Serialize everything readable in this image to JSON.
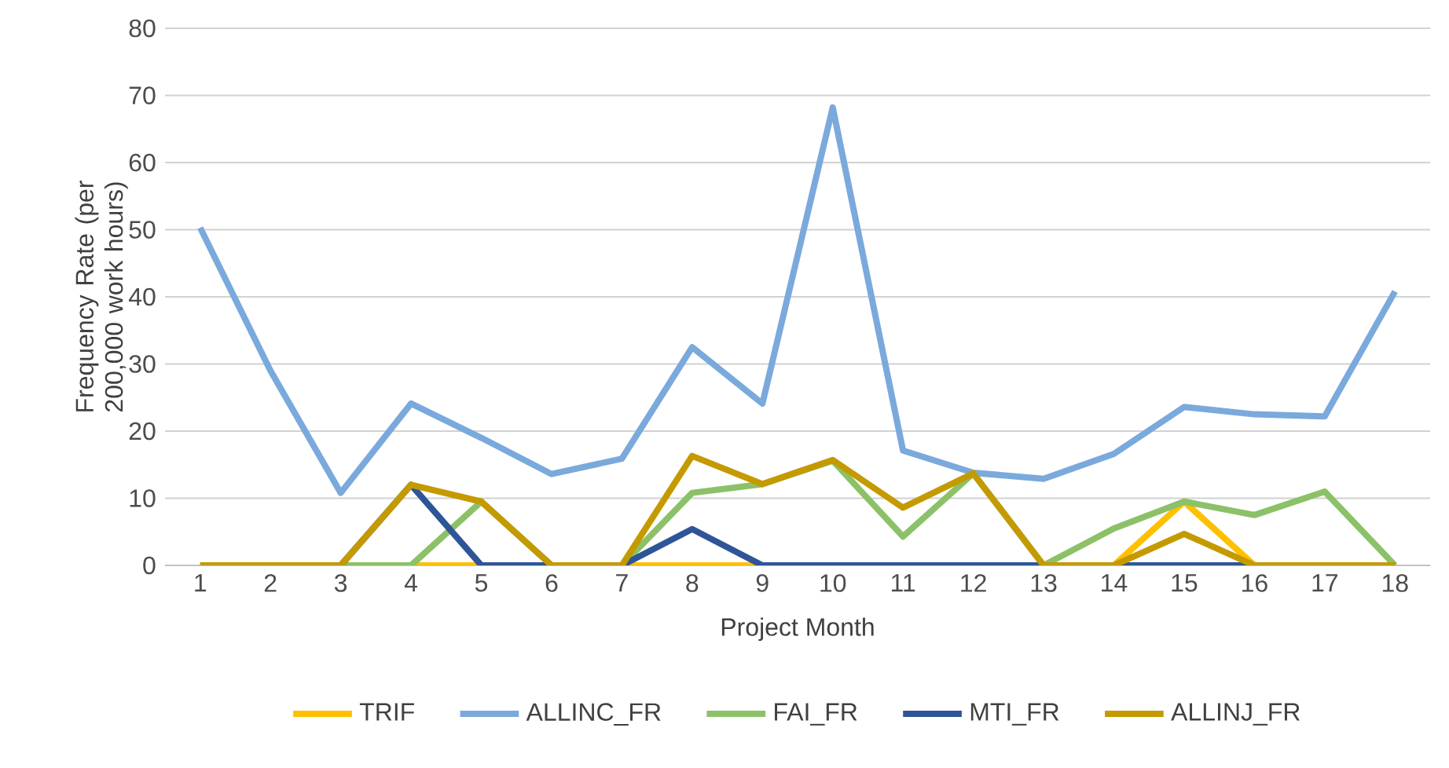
{
  "chart_data": {
    "type": "line",
    "xlabel": "Project Month",
    "ylabel": "Frequency Rate (per 200,000 work hours)",
    "categories": [
      "1",
      "2",
      "3",
      "4",
      "5",
      "6",
      "7",
      "8",
      "9",
      "10",
      "11",
      "12",
      "13",
      "14",
      "15",
      "16",
      "17",
      "18"
    ],
    "series": [
      {
        "name": "TRIF",
        "color": "#ffc000",
        "values": [
          null,
          null,
          null,
          0,
          0,
          0,
          0,
          0,
          0,
          null,
          null,
          null,
          null,
          0,
          9.5,
          0,
          null,
          null
        ]
      },
      {
        "name": "ALLINC_FR",
        "color": "#7aa9dc",
        "values": [
          50.3,
          29,
          10.8,
          24.1,
          19,
          13.6,
          15.9,
          32.5,
          24.1,
          68.2,
          17.1,
          13.8,
          12.9,
          16.6,
          23.6,
          22.5,
          22.2,
          40.8
        ]
      },
      {
        "name": "FAI_FR",
        "color": "#8cc168",
        "values": [
          0,
          0,
          0,
          0,
          9.5,
          0,
          0,
          10.8,
          12.1,
          15.6,
          4.3,
          13.7,
          0,
          5.5,
          9.5,
          7.5,
          11,
          0
        ]
      },
      {
        "name": "MTI_FR",
        "color": "#2e5597",
        "values": [
          null,
          null,
          0,
          12,
          0,
          0,
          0,
          5.4,
          0,
          0,
          0,
          0,
          0,
          0,
          0,
          0,
          0,
          0
        ]
      },
      {
        "name": "ALLINJ_FR",
        "color": "#c49a00",
        "values": [
          0,
          0,
          0,
          12,
          9.5,
          0,
          0,
          16.3,
          12.1,
          15.7,
          8.6,
          13.7,
          0,
          0,
          4.7,
          0,
          0,
          0
        ]
      }
    ],
    "ylim": [
      0,
      80
    ],
    "yticks": [
      0,
      10,
      20,
      30,
      40,
      50,
      60,
      70,
      80
    ],
    "grid": "y",
    "legend": "bottom",
    "marker": "none",
    "line_style": "solid"
  }
}
